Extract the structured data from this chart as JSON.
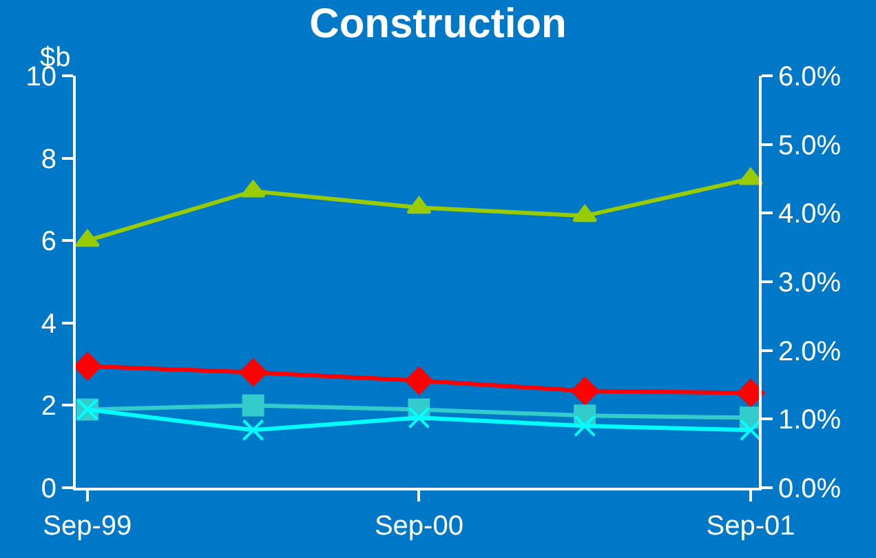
{
  "chart_data": {
    "type": "line",
    "title": "Construction",
    "ylabel": "$b",
    "categories": [
      "Sep-99",
      null,
      "Sep-00",
      null,
      "Sep-01"
    ],
    "series": [
      {
        "color": "#99cc00",
        "marker": "triangle",
        "values": [
          6.0,
          7.2,
          6.8,
          6.6,
          7.5
        ]
      },
      {
        "color": "#ff0000",
        "marker": "diamond",
        "values": [
          2.95,
          2.8,
          2.6,
          2.35,
          2.3
        ]
      },
      {
        "color": "#33cccc",
        "marker": "square",
        "values": [
          1.9,
          2.0,
          1.9,
          1.75,
          1.7
        ]
      },
      {
        "color": "#00ffff",
        "marker": "cross",
        "values": [
          1.9,
          1.4,
          1.7,
          1.5,
          1.4
        ]
      }
    ],
    "ylim": [
      0,
      10
    ],
    "yticks": [
      0,
      2,
      4,
      6,
      8,
      10
    ],
    "y2lim": [
      0,
      6
    ],
    "y2ticks": [
      {
        "value": 0,
        "label": "0.0%"
      },
      {
        "value": 1,
        "label": "1.0%"
      },
      {
        "value": 2,
        "label": "2.0%"
      },
      {
        "value": 3,
        "label": "3.0%"
      },
      {
        "value": 4,
        "label": "4.0%"
      },
      {
        "value": 5,
        "label": "5.0%"
      },
      {
        "value": 6,
        "label": "6.0%"
      }
    ],
    "grid": false,
    "legend": false
  }
}
